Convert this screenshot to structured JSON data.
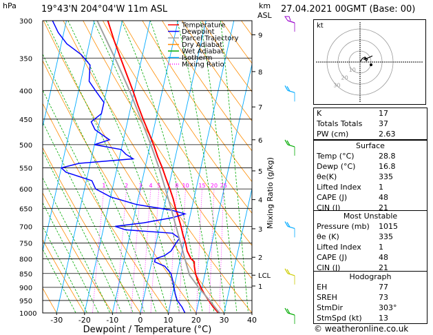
{
  "header": {
    "pressure_unit": "hPa",
    "location": "19°43'N  204°04'W  11m  ASL",
    "height_unit": "km",
    "height_unit2": "ASL",
    "datetime": "27.04.2021  00GMT  (Base: 00)"
  },
  "footer": {
    "credit": "© weatheronline.co.uk"
  },
  "colors": {
    "temperature": "#ff0000",
    "dewpoint": "#0000ff",
    "parcel": "#a0a0a0",
    "dry_adiabat": "#ff8c00",
    "wet_adiabat": "#00aa00",
    "isotherm": "#00aaff",
    "mixing_ratio": "#ff00ff",
    "wind": "#00aa00"
  },
  "chart_data": {
    "type": "line",
    "xlabel": "Dewpoint / Temperature (°C)",
    "ylabel_right": "Mixing Ratio (g/kg)",
    "x_ticks": [
      -30,
      -20,
      -10,
      0,
      10,
      20,
      30,
      40
    ],
    "x_range": [
      -35,
      40
    ],
    "y_range": [
      1000,
      300
    ],
    "skew_c_per_decade_log_p": 45,
    "pressure_levels": [
      300,
      350,
      400,
      450,
      500,
      550,
      600,
      650,
      700,
      750,
      800,
      850,
      900,
      950,
      1000
    ],
    "height_ticks": [
      {
        "label": "9",
        "p": 318
      },
      {
        "label": "8",
        "p": 370
      },
      {
        "label": "7",
        "p": 428
      },
      {
        "label": "6",
        "p": 490
      },
      {
        "label": "5",
        "p": 557
      },
      {
        "label": "4",
        "p": 627
      },
      {
        "label": "3",
        "p": 707
      },
      {
        "label": "2",
        "p": 795
      },
      {
        "label": "LCL",
        "p": 856
      },
      {
        "label": "1",
        "p": 895
      }
    ],
    "mixing_ratio_labels": [
      "1",
      "2",
      "3",
      "4",
      "5",
      "8",
      "10",
      "15",
      "20",
      "25"
    ],
    "mixing_ratio_values": [
      1,
      2,
      3,
      4,
      5,
      8,
      10,
      15,
      20,
      25
    ],
    "legend": [
      "Temperature",
      "Dewpoint",
      "Parcel Trajectory",
      "Dry Adiabat",
      "Wet Adiabat",
      "Isotherm",
      "Mixing Ratio"
    ],
    "legend_position": "top-right of diagram",
    "series": [
      {
        "name": "Temperature",
        "points": [
          [
            1005,
            28.8
          ],
          [
            1000,
            28.0
          ],
          [
            975,
            25.6
          ],
          [
            950,
            23.5
          ],
          [
            925,
            21.4
          ],
          [
            900,
            19.6
          ],
          [
            875,
            18.0
          ],
          [
            850,
            16.6
          ],
          [
            825,
            15.6
          ],
          [
            810,
            15.2
          ],
          [
            800,
            13.8
          ],
          [
            775,
            11.8
          ],
          [
            750,
            10.6
          ],
          [
            725,
            9.0
          ],
          [
            700,
            7.6
          ],
          [
            675,
            6.0
          ],
          [
            650,
            4.2
          ],
          [
            625,
            2.6
          ],
          [
            600,
            0.6
          ],
          [
            575,
            -1.6
          ],
          [
            550,
            -3.8
          ],
          [
            525,
            -6.4
          ],
          [
            500,
            -8.8
          ],
          [
            475,
            -11.6
          ],
          [
            450,
            -14.6
          ],
          [
            425,
            -17.6
          ],
          [
            400,
            -20.6
          ],
          [
            375,
            -24.0
          ],
          [
            350,
            -27.6
          ],
          [
            325,
            -31.4
          ],
          [
            300,
            -35.2
          ]
        ]
      },
      {
        "name": "Dewpoint",
        "points": [
          [
            1005,
            16.8
          ],
          [
            1000,
            16.0
          ],
          [
            975,
            14.4
          ],
          [
            950,
            12.2
          ],
          [
            925,
            11.0
          ],
          [
            900,
            10.0
          ],
          [
            875,
            9.0
          ],
          [
            850,
            7.8
          ],
          [
            825,
            5.0
          ],
          [
            810,
            1.0
          ],
          [
            800,
            1.0
          ],
          [
            790,
            4.0
          ],
          [
            775,
            6.0
          ],
          [
            750,
            7.2
          ],
          [
            735,
            8.0
          ],
          [
            720,
            5.0
          ],
          [
            710,
            -12.0
          ],
          [
            700,
            -16.0
          ],
          [
            690,
            -6.0
          ],
          [
            675,
            4.0
          ],
          [
            665,
            8.0
          ],
          [
            655,
            3.0
          ],
          [
            640,
            -10.0
          ],
          [
            620,
            -20.0
          ],
          [
            600,
            -26.0
          ],
          [
            580,
            -28.0
          ],
          [
            570,
            -33.0
          ],
          [
            560,
            -38.0
          ],
          [
            550,
            -40.0
          ],
          [
            540,
            -34.0
          ],
          [
            530,
            -15.0
          ],
          [
            520,
            -18.0
          ],
          [
            510,
            -20.0
          ],
          [
            500,
            -30.0
          ],
          [
            490,
            -25.0
          ],
          [
            480,
            -28.0
          ],
          [
            470,
            -31.0
          ],
          [
            455,
            -33.0
          ],
          [
            440,
            -30.0
          ],
          [
            420,
            -30.0
          ],
          [
            400,
            -34.0
          ],
          [
            385,
            -37.0
          ],
          [
            360,
            -38.0
          ],
          [
            345,
            -42.0
          ],
          [
            330,
            -48.0
          ],
          [
            315,
            -52.0
          ],
          [
            305,
            -54.0
          ],
          [
            300,
            -55.0
          ]
        ]
      },
      {
        "name": "Parcel Trajectory",
        "points": [
          [
            1005,
            28.8
          ],
          [
            950,
            23.8
          ],
          [
            900,
            18.8
          ],
          [
            856,
            14.6
          ],
          [
            800,
            11.6
          ],
          [
            750,
            8.8
          ],
          [
            700,
            5.8
          ],
          [
            650,
            2.6
          ],
          [
            600,
            -1.0
          ],
          [
            550,
            -5.0
          ],
          [
            500,
            -9.8
          ],
          [
            450,
            -15.4
          ],
          [
            400,
            -21.8
          ],
          [
            350,
            -29.6
          ],
          [
            300,
            -39.0
          ]
        ]
      }
    ]
  },
  "hodograph": {
    "label": "kt",
    "ring_labels": [
      "10",
      "20",
      "30"
    ],
    "points": [
      [
        0,
        0
      ],
      [
        2,
        -3
      ],
      [
        4,
        -4
      ],
      [
        6,
        -2
      ],
      [
        5,
        -1
      ],
      [
        4,
        -3
      ],
      [
        3,
        -2
      ],
      [
        8,
        -4
      ],
      [
        10,
        -5
      ]
    ]
  },
  "indices": [
    {
      "label": "K",
      "value": "17"
    },
    {
      "label": "Totals Totals",
      "value": "37"
    },
    {
      "label": "PW (cm)",
      "value": "2.63"
    }
  ],
  "surface": {
    "title": "Surface",
    "rows": [
      {
        "label": "Temp (°C)",
        "value": "28.8"
      },
      {
        "label": "Dewp (°C)",
        "value": "16.8"
      },
      {
        "label": "θe(K)",
        "value": "335"
      },
      {
        "label": "Lifted Index",
        "value": "1"
      },
      {
        "label": "CAPE (J)",
        "value": "48"
      },
      {
        "label": "CIN (J)",
        "value": "21"
      }
    ]
  },
  "most_unstable": {
    "title": "Most Unstable",
    "rows": [
      {
        "label": "Pressure (mb)",
        "value": "1015"
      },
      {
        "label": "θe (K)",
        "value": "335"
      },
      {
        "label": "Lifted Index",
        "value": "1"
      },
      {
        "label": "CAPE (J)",
        "value": "48"
      },
      {
        "label": "CIN (J)",
        "value": "21"
      }
    ]
  },
  "hodograph_table": {
    "title": "Hodograph",
    "rows": [
      {
        "label": "EH",
        "value": "77"
      },
      {
        "label": "SREH",
        "value": "73"
      },
      {
        "label": "StmDir",
        "value": "303°"
      },
      {
        "label": "StmSpd (kt)",
        "value": "13"
      }
    ]
  },
  "wind_barbs": [
    {
      "p": 300,
      "kind": "pennant",
      "color": "#9900cc"
    },
    {
      "p": 400,
      "kind": "flag",
      "color": "#00aaff"
    },
    {
      "p": 500,
      "kind": "flag",
      "color": "#00aa00"
    },
    {
      "p": 700,
      "kind": "flag",
      "color": "#00aaff"
    },
    {
      "p": 850,
      "kind": "flag",
      "color": "#cccc00"
    },
    {
      "p": 1000,
      "kind": "flag",
      "color": "#00aa00"
    }
  ]
}
